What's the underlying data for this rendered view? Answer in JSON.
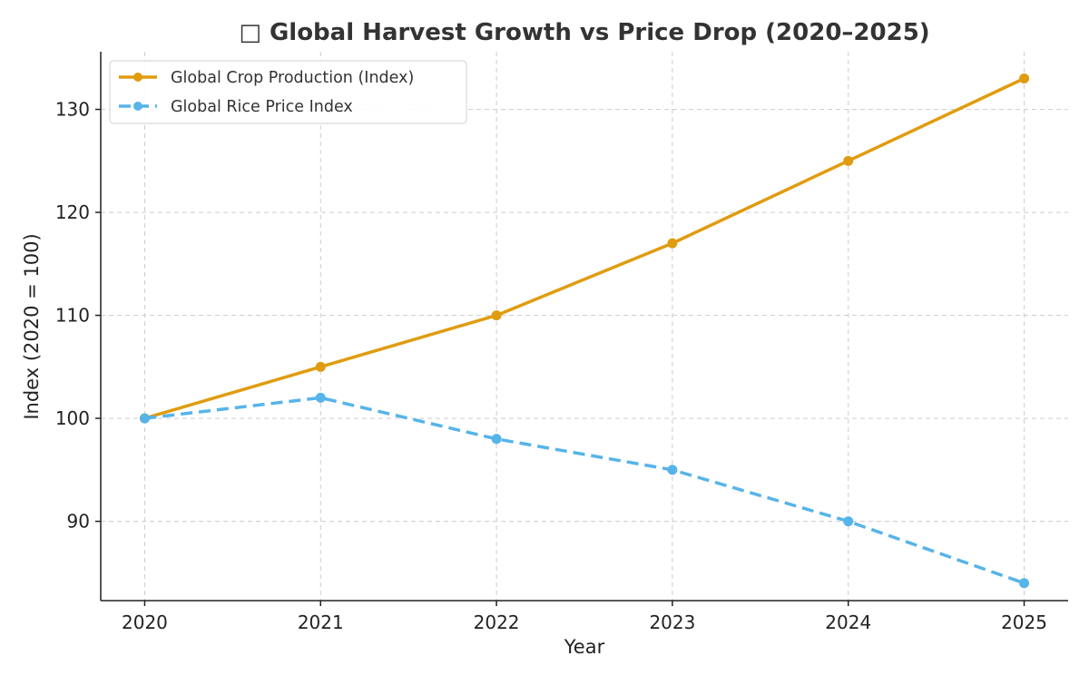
{
  "chart_data": {
    "type": "line",
    "title": "□ Global Harvest Growth vs Price Drop (2020–2025)",
    "xlabel": "Year",
    "ylabel": "Index (2020 = 100)",
    "x": [
      "2020",
      "2021",
      "2022",
      "2023",
      "2024",
      "2025"
    ],
    "xlim": [
      2019.75,
      2025.25
    ],
    "ylim": [
      82.3,
      135.6
    ],
    "yticks": [
      90,
      100,
      110,
      120,
      130
    ],
    "grid": true,
    "legend_position": "top-left",
    "series": [
      {
        "name": "Global Crop Production (Index)",
        "values": [
          100,
          105,
          110,
          117,
          125,
          133
        ],
        "color": "#e09c0f",
        "line_style": "solid",
        "marker": "circle"
      },
      {
        "name": "Global Rice Price Index",
        "values": [
          100,
          102,
          98,
          95,
          90,
          84
        ],
        "color": "#56b4e9",
        "line_style": "dashed",
        "marker": "circle"
      }
    ]
  }
}
